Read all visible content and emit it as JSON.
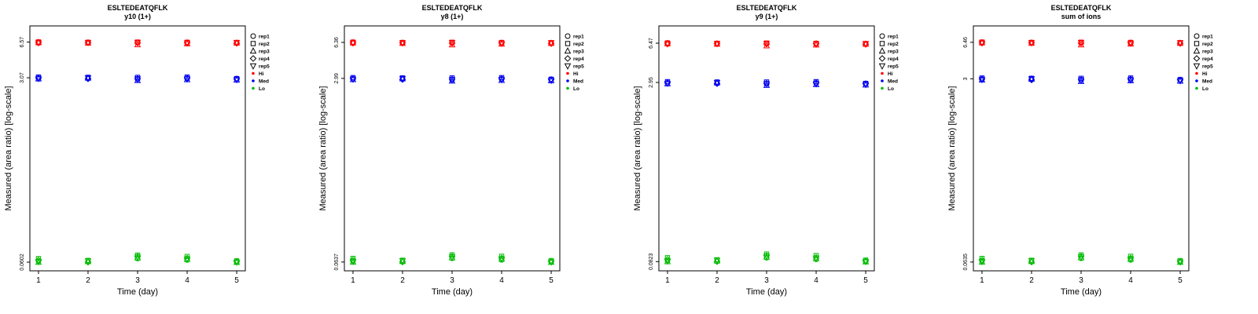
{
  "chart_data": {
    "type": "scatter",
    "xlabel": "Time (day)",
    "ylabel": "Measured (area ratio) [log-scale]",
    "x_ticks": [
      1,
      2,
      3,
      4,
      5
    ],
    "grid": false,
    "yscale": "log",
    "legend": {
      "position": "right-outside",
      "reps": [
        {
          "label": "rep1",
          "symbol": "circle"
        },
        {
          "label": "rep2",
          "symbol": "square"
        },
        {
          "label": "rep3",
          "symbol": "triangle-up"
        },
        {
          "label": "rep4",
          "symbol": "diamond"
        },
        {
          "label": "rep5",
          "symbol": "triangle-down"
        }
      ],
      "groups": [
        {
          "label": "Hi",
          "color": "#FF0000"
        },
        {
          "label": "Med",
          "color": "#0000EE"
        },
        {
          "label": "Lo",
          "color": "#00BB00"
        }
      ]
    },
    "panels": [
      {
        "title": "ESLTEDEATQFLK",
        "subtitle": "y10 (1+)",
        "y_tick_labels": [
          "6.57",
          "3.07",
          "0.0602"
        ],
        "y_tick_values": [
          6.57,
          3.07,
          0.0602
        ],
        "groups": [
          {
            "name": "Hi",
            "reps": [
              [
                6.45,
                6.52,
                6.5,
                6.46,
                6.5
              ],
              [
                6.6,
                6.55,
                6.58,
                6.55,
                6.48
              ],
              [
                6.5,
                6.44,
                6.22,
                6.35,
                6.44
              ],
              [
                6.55,
                6.5,
                6.45,
                6.5,
                6.4
              ],
              [
                6.48,
                6.5,
                6.52,
                6.44,
                6.52
              ]
            ]
          },
          {
            "name": "Med",
            "reps": [
              [
                3.05,
                3.02,
                2.97,
                3.02,
                3.0
              ],
              [
                3.12,
                3.1,
                3.1,
                3.12,
                3.02
              ],
              [
                3.0,
                3.05,
                2.9,
                2.95,
                2.93
              ],
              [
                3.06,
                3.0,
                3.02,
                3.06,
                3.0
              ],
              [
                3.02,
                3.06,
                3.0,
                3.0,
                2.95
              ]
            ]
          },
          {
            "name": "Lo",
            "reps": [
              [
                0.0615,
                0.0605,
                0.065,
                0.063,
                0.0605
              ],
              [
                0.065,
                0.0625,
                0.07,
                0.068,
                0.062
              ],
              [
                0.0602,
                0.061,
                0.066,
                0.064,
                0.06
              ],
              [
                0.063,
                0.0602,
                0.068,
                0.0655,
                0.0612
              ],
              [
                0.061,
                0.0618,
                0.067,
                0.0645,
                0.0603
              ]
            ]
          }
        ]
      },
      {
        "title": "ESLTEDEATQFLK",
        "subtitle": "y8 (1+)",
        "y_tick_labels": [
          "6.36",
          "2.99",
          "0.0637"
        ],
        "y_tick_values": [
          6.36,
          2.99,
          0.0637
        ],
        "groups": [
          {
            "name": "Hi",
            "reps": [
              [
                6.25,
                6.32,
                6.3,
                6.26,
                6.3
              ],
              [
                6.4,
                6.35,
                6.38,
                6.35,
                6.28
              ],
              [
                6.3,
                6.24,
                6.05,
                6.15,
                6.24
              ],
              [
                6.35,
                6.3,
                6.25,
                6.3,
                6.2
              ],
              [
                6.28,
                6.3,
                6.32,
                6.24,
                6.32
              ]
            ]
          },
          {
            "name": "Med",
            "reps": [
              [
                2.97,
                2.94,
                2.9,
                2.94,
                2.92
              ],
              [
                3.04,
                3.02,
                3.02,
                3.04,
                2.94
              ],
              [
                2.92,
                2.97,
                2.83,
                2.87,
                2.85
              ],
              [
                2.98,
                2.92,
                2.94,
                2.98,
                2.92
              ],
              [
                2.94,
                2.98,
                2.92,
                2.92,
                2.87
              ]
            ]
          },
          {
            "name": "Lo",
            "reps": [
              [
                0.065,
                0.064,
                0.0688,
                0.0666,
                0.064
              ],
              [
                0.0688,
                0.0661,
                0.074,
                0.0719,
                0.0656
              ],
              [
                0.0637,
                0.0645,
                0.0698,
                0.0677,
                0.0635
              ],
              [
                0.0666,
                0.0637,
                0.0719,
                0.0693,
                0.0647
              ],
              [
                0.0645,
                0.0654,
                0.0709,
                0.0682,
                0.0638
              ]
            ]
          }
        ]
      },
      {
        "title": "ESLTEDEATQFLK",
        "subtitle": "y9 (1+)",
        "y_tick_labels": [
          "6.47",
          "2.95",
          "0.0823"
        ],
        "y_tick_values": [
          6.47,
          2.95,
          0.0823
        ],
        "groups": [
          {
            "name": "Hi",
            "reps": [
              [
                6.36,
                6.43,
                6.41,
                6.37,
                6.41
              ],
              [
                6.51,
                6.46,
                6.49,
                6.46,
                6.39
              ],
              [
                6.41,
                6.35,
                6.14,
                6.26,
                6.35
              ],
              [
                6.46,
                6.41,
                6.36,
                6.41,
                6.31
              ],
              [
                6.39,
                6.41,
                6.43,
                6.35,
                6.43
              ]
            ]
          },
          {
            "name": "Med",
            "reps": [
              [
                2.93,
                2.9,
                2.86,
                2.9,
                2.88
              ],
              [
                3.0,
                2.98,
                2.98,
                3.0,
                2.9
              ],
              [
                2.88,
                2.93,
                2.79,
                2.83,
                2.81
              ],
              [
                2.94,
                2.88,
                2.9,
                2.94,
                2.88
              ],
              [
                2.9,
                2.94,
                2.88,
                2.88,
                2.83
              ]
            ]
          },
          {
            "name": "Lo",
            "reps": [
              [
                0.084,
                0.0827,
                0.0889,
                0.0861,
                0.0827
              ],
              [
                0.0889,
                0.0854,
                0.0957,
                0.0929,
                0.0848
              ],
              [
                0.0823,
                0.0834,
                0.0902,
                0.0875,
                0.082
              ],
              [
                0.0861,
                0.0823,
                0.0929,
                0.0895,
                0.0836
              ],
              [
                0.0834,
                0.0845,
                0.0916,
                0.0882,
                0.0824
              ]
            ]
          }
        ]
      },
      {
        "title": "ESLTEDEATQFLK",
        "subtitle": "sum of ions",
        "y_tick_labels": [
          "6.46",
          "3",
          "0.0635"
        ],
        "y_tick_values": [
          6.46,
          3,
          0.0635
        ],
        "groups": [
          {
            "name": "Hi",
            "reps": [
              [
                6.35,
                6.42,
                6.4,
                6.36,
                6.4
              ],
              [
                6.5,
                6.45,
                6.48,
                6.45,
                6.38
              ],
              [
                6.4,
                6.34,
                6.13,
                6.25,
                6.34
              ],
              [
                6.45,
                6.4,
                6.35,
                6.4,
                6.3
              ],
              [
                6.38,
                6.4,
                6.42,
                6.34,
                6.42
              ]
            ]
          },
          {
            "name": "Med",
            "reps": [
              [
                2.98,
                2.95,
                2.91,
                2.95,
                2.93
              ],
              [
                3.05,
                3.03,
                3.03,
                3.05,
                2.95
              ],
              [
                2.93,
                2.98,
                2.84,
                2.88,
                2.86
              ],
              [
                2.99,
                2.93,
                2.95,
                2.99,
                2.93
              ],
              [
                2.95,
                2.99,
                2.93,
                2.93,
                2.88
              ]
            ]
          },
          {
            "name": "Lo",
            "reps": [
              [
                0.0648,
                0.0638,
                0.0686,
                0.0664,
                0.0638
              ],
              [
                0.0686,
                0.0659,
                0.0738,
                0.0717,
                0.0654
              ],
              [
                0.0635,
                0.0643,
                0.0696,
                0.0675,
                0.0633
              ],
              [
                0.0664,
                0.0635,
                0.0717,
                0.0691,
                0.0645
              ],
              [
                0.0643,
                0.0652,
                0.0707,
                0.068,
                0.0636
              ]
            ]
          }
        ]
      }
    ]
  }
}
